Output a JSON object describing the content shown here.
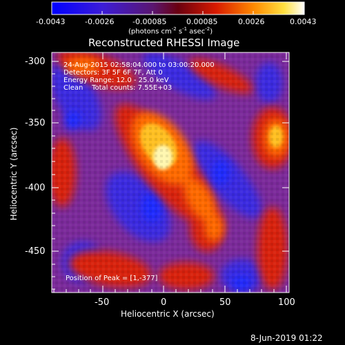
{
  "title": "Reconstructed RHESSI Image",
  "colorbar": {
    "ticks": [
      "-0.0043",
      "-0.0026",
      "-0.00085",
      "0.00085",
      "0.0026",
      "0.0043"
    ],
    "units_line1": "(photons cm",
    "units_sup1": "-2",
    "units_mid": " s",
    "units_sup2": "-1",
    "units_mid2": " asec",
    "units_sup3": "-2",
    "units_end": ")"
  },
  "annotations": {
    "time_range": "24-Aug-2015 02:58:04.000 to 03:00:20.000",
    "detectors": "Detectors: 3F 5F 6F 7F, Att 0",
    "energy": "Energy Range: 12.0 - 25.0 keV",
    "method": "Clean    Total counts: 7.55E+03",
    "peak": "Position of Peak = [1,-377]"
  },
  "axes": {
    "xlabel": "Heliocentric X (arcsec)",
    "ylabel": "Heliocentric Y (arcsec)",
    "xticks": [
      "-50",
      "0",
      "50",
      "100"
    ],
    "yticks": [
      "-300",
      "-350",
      "-400",
      "-450"
    ],
    "xlim": [
      -90,
      100
    ],
    "ylim": [
      -485,
      -288
    ]
  },
  "footer": {
    "date": "8-Jun-2019 01:22"
  },
  "colors": {
    "background": "#000000",
    "text": "#ffffff"
  }
}
